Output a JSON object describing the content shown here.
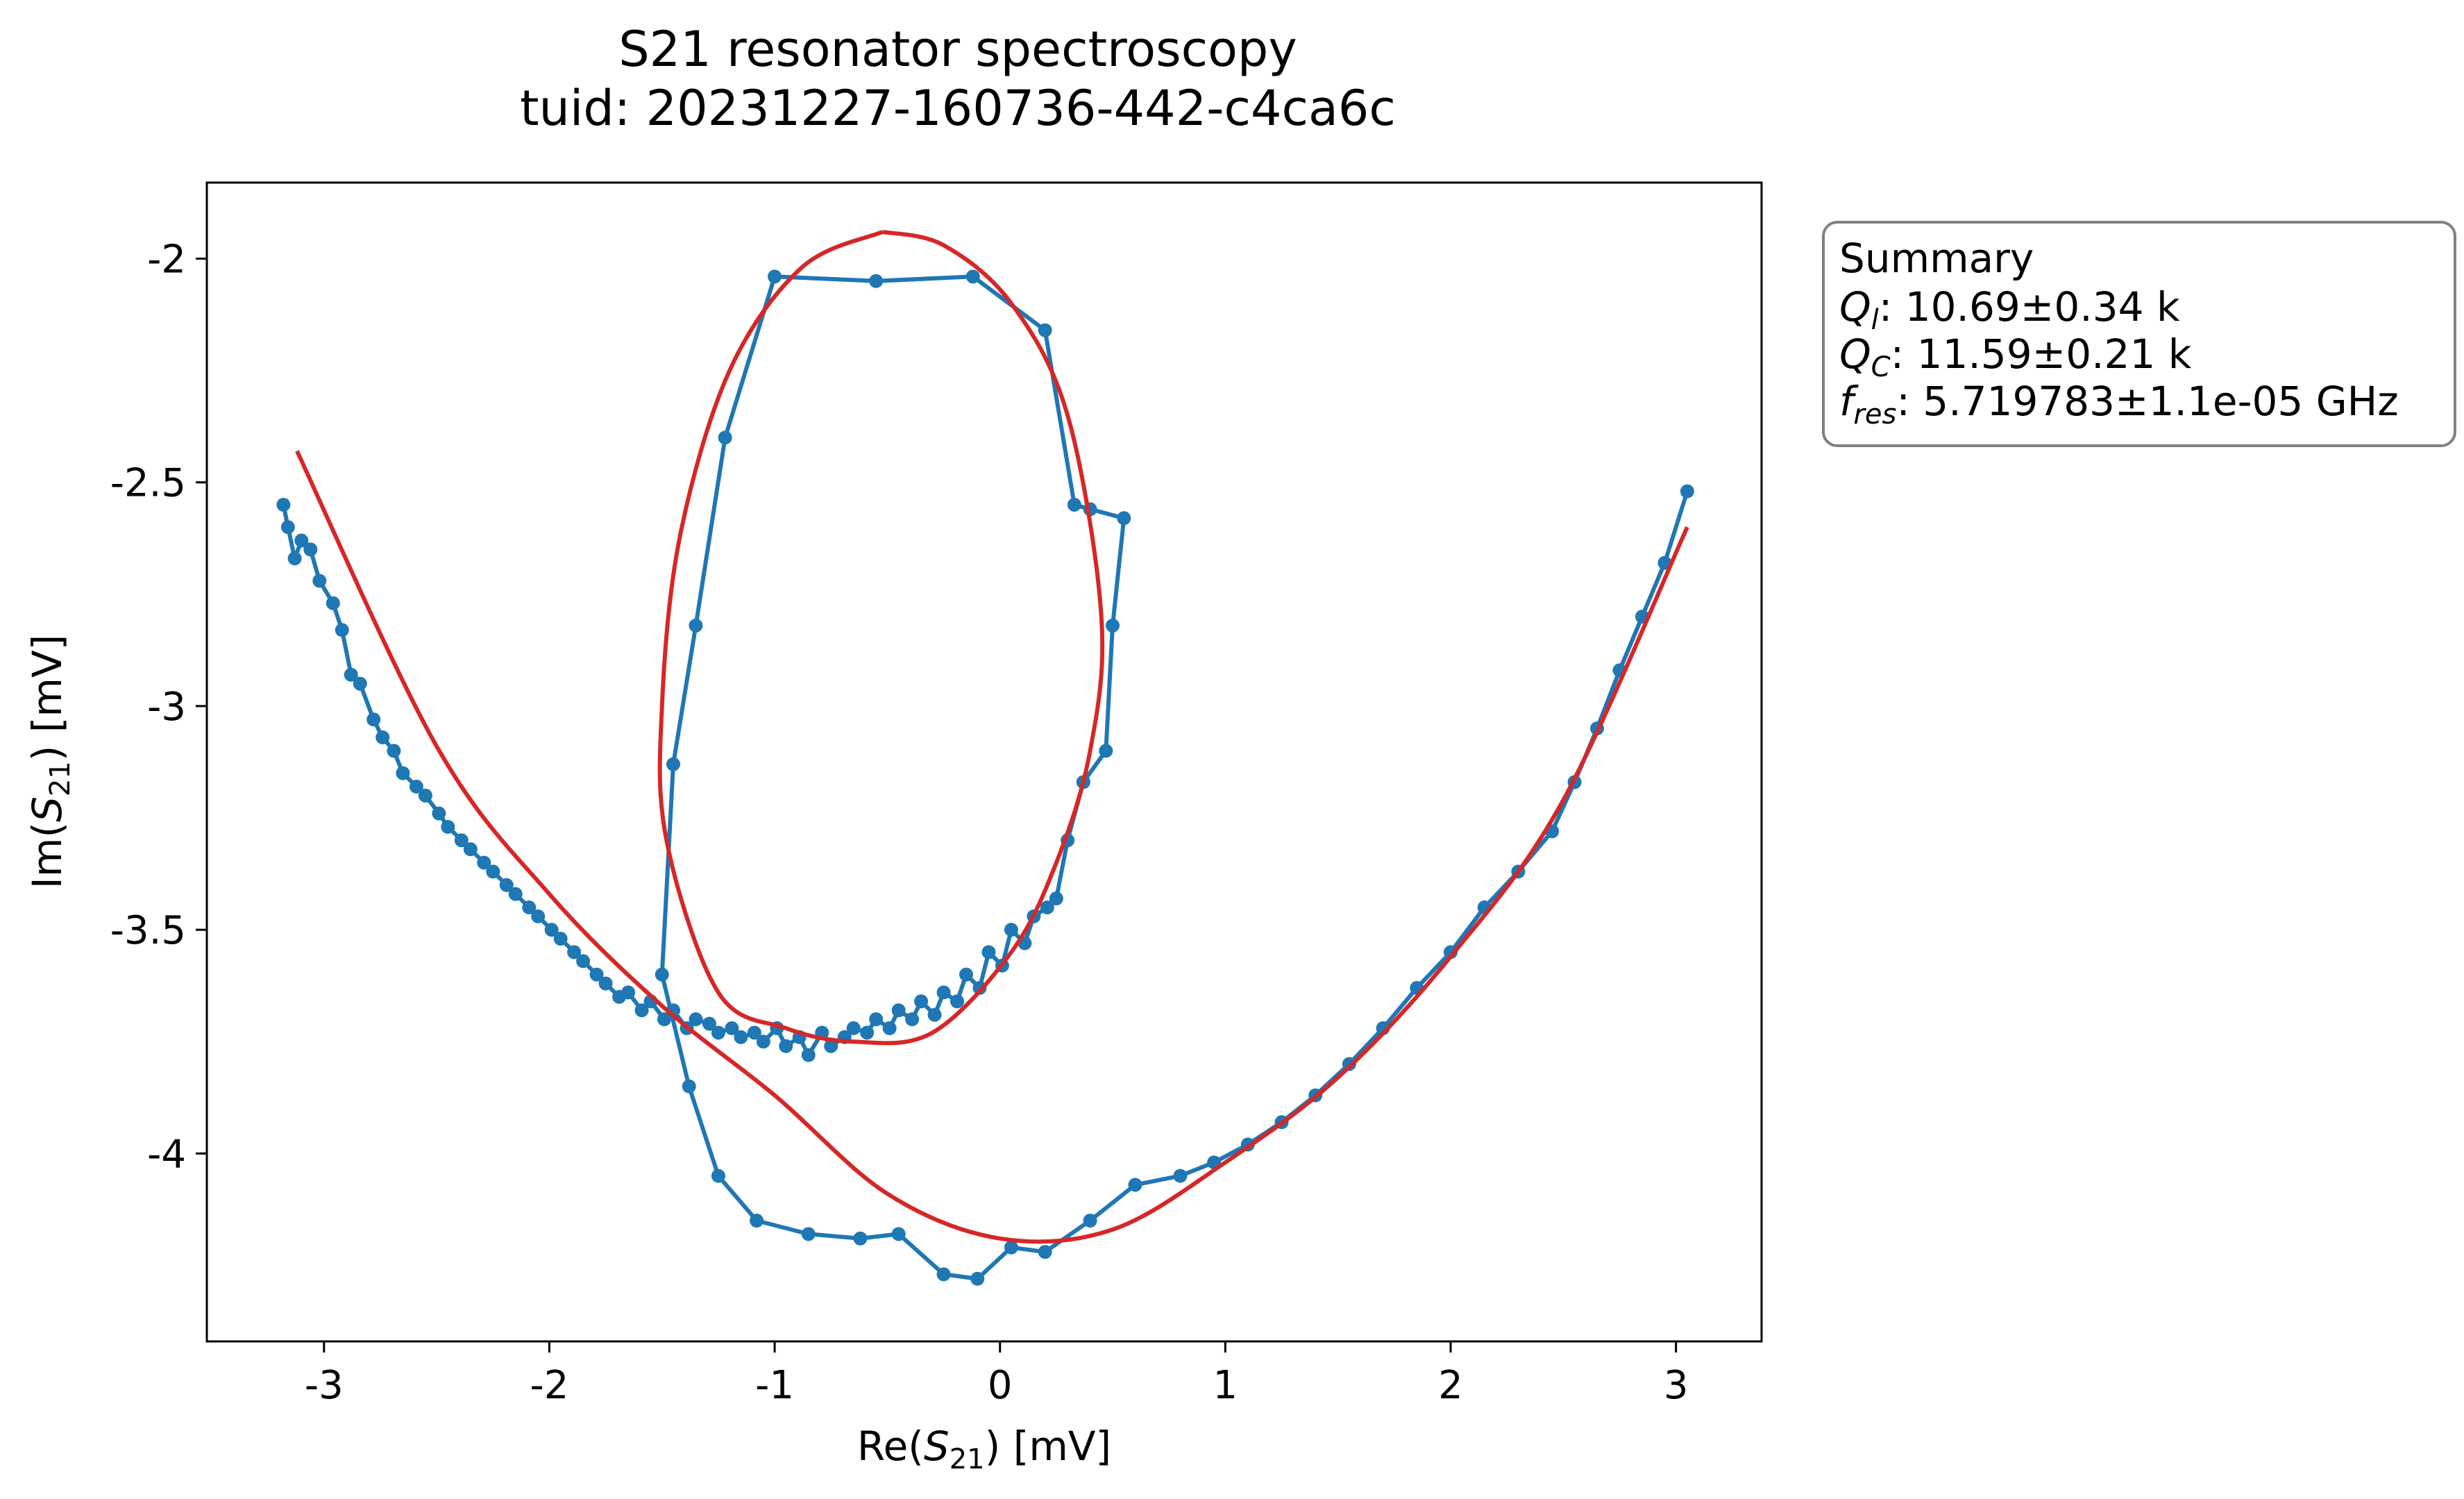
{
  "chart_data": {
    "type": "scatter",
    "title": "S21 resonator spectroscopy",
    "subtitle": "tuid: 20231227-160736-442-c4ca6c",
    "xlabel": "Re(S21) [mV]",
    "ylabel": "Im(S21) [mV]",
    "xlim": [
      -3.52,
      3.38
    ],
    "ylim": [
      -4.42,
      -1.83
    ],
    "xticks": [
      -3,
      -2,
      -1,
      0,
      1,
      2,
      3
    ],
    "xtick_labels": [
      "-3",
      "-2",
      "-1",
      "0",
      "1",
      "2",
      "3"
    ],
    "yticks": [
      -4,
      -3.5,
      -3,
      -2.5,
      -2
    ],
    "ytick_labels": [
      "-4",
      "-3.5",
      "-3",
      "-2.5",
      "-2"
    ],
    "grid": false,
    "colors": {
      "data": "#1f77b4",
      "fit": "#d62728"
    },
    "summary": {
      "heading": "Summary",
      "lines": [
        {
          "sym": "Q",
          "sub": "l",
          "text": ": 10.69±0.34 k"
        },
        {
          "sym": "Q",
          "sub": "C",
          "text": ": 11.59±0.21 k"
        },
        {
          "sym": "f",
          "sub": "res",
          "text": ": 5.719783±1.1e-05 GHz"
        }
      ]
    },
    "series": [
      {
        "style": "line+markers",
        "x": [
          -3.18,
          -3.16,
          -3.13,
          -3.1,
          -3.06,
          -3.02,
          -2.96,
          -2.92,
          -2.88,
          -2.84,
          -2.78,
          -2.74,
          -2.69,
          -2.65,
          -2.59,
          -2.55,
          -2.49,
          -2.45,
          -2.39,
          -2.35,
          -2.29,
          -2.25,
          -2.19,
          -2.15,
          -2.09,
          -2.05,
          -1.99,
          -1.95,
          -1.89,
          -1.85,
          -1.79,
          -1.75,
          -1.69,
          -1.65,
          -1.59,
          -1.55,
          -1.49,
          -1.45,
          -1.39,
          -1.35,
          -1.29,
          -1.25,
          -1.19,
          -1.15,
          -1.09,
          -1.05,
          -0.99,
          -0.95,
          -0.89,
          -0.85,
          -0.79,
          -0.75,
          -0.69,
          -0.65,
          -0.59,
          -0.55,
          -0.49,
          -0.45,
          -0.39,
          -0.35,
          -0.29,
          -0.25,
          -0.19,
          -0.15,
          -0.09,
          -0.05,
          0.01,
          0.05,
          0.11,
          0.15,
          0.21,
          0.25,
          0.3,
          0.37,
          0.47,
          0.5,
          0.55,
          0.4,
          0.33,
          0.2,
          -0.12,
          -0.55,
          -1.0,
          -1.22,
          -1.35,
          -1.45,
          -1.5,
          -1.38,
          -1.25,
          -1.08,
          -0.85,
          -0.62,
          -0.45,
          -0.25,
          -0.1,
          0.05,
          0.2,
          0.4,
          0.6,
          0.8,
          0.95,
          1.1,
          1.25,
          1.4,
          1.55,
          1.7,
          1.85,
          2.0,
          2.15,
          2.3,
          2.45,
          2.55,
          2.65,
          2.75,
          2.85,
          2.95,
          3.05
        ],
        "y": [
          -2.55,
          -2.6,
          -2.67,
          -2.63,
          -2.65,
          -2.72,
          -2.77,
          -2.83,
          -2.93,
          -2.95,
          -3.03,
          -3.07,
          -3.1,
          -3.15,
          -3.18,
          -3.2,
          -3.24,
          -3.27,
          -3.3,
          -3.32,
          -3.35,
          -3.37,
          -3.4,
          -3.42,
          -3.45,
          -3.47,
          -3.5,
          -3.52,
          -3.55,
          -3.57,
          -3.6,
          -3.62,
          -3.65,
          -3.64,
          -3.68,
          -3.66,
          -3.7,
          -3.68,
          -3.72,
          -3.7,
          -3.71,
          -3.73,
          -3.72,
          -3.74,
          -3.73,
          -3.75,
          -3.72,
          -3.76,
          -3.74,
          -3.78,
          -3.73,
          -3.76,
          -3.74,
          -3.72,
          -3.73,
          -3.7,
          -3.72,
          -3.68,
          -3.7,
          -3.66,
          -3.69,
          -3.64,
          -3.66,
          -3.6,
          -3.63,
          -3.55,
          -3.58,
          -3.5,
          -3.53,
          -3.47,
          -3.45,
          -3.43,
          -3.3,
          -3.17,
          -3.1,
          -2.82,
          -2.58,
          -2.56,
          -2.55,
          -2.16,
          -2.04,
          -2.05,
          -2.04,
          -2.4,
          -2.82,
          -3.13,
          -3.6,
          -3.85,
          -4.05,
          -4.15,
          -4.18,
          -4.19,
          -4.18,
          -4.27,
          -4.28,
          -4.21,
          -4.22,
          -4.15,
          -4.07,
          -4.05,
          -4.02,
          -3.98,
          -3.93,
          -3.87,
          -3.8,
          -3.72,
          -3.63,
          -3.55,
          -3.45,
          -3.37,
          -3.28,
          -3.17,
          -3.05,
          -2.92,
          -2.8,
          -2.68,
          -2.52
        ]
      },
      {
        "style": "line",
        "x": [
          -3.12,
          -2.5,
          -2.0,
          -1.5,
          -1.0,
          -0.5,
          0.0,
          0.5,
          1.0,
          1.5,
          2.0,
          2.5,
          3.05
        ],
        "y": [
          -2.43,
          -3.09,
          -3.42,
          -3.67,
          -3.87,
          -4.09,
          -4.19,
          -4.17,
          -4.02,
          -3.83,
          -3.56,
          -3.21,
          -2.6
        ]
      },
      {
        "style": "line",
        "x": [
          -0.52,
          -0.25,
          0.05,
          0.3,
          0.45,
          0.4,
          0.25,
          0.05,
          -0.3,
          -0.65,
          -0.95,
          -1.25,
          -1.48,
          -1.5,
          -1.42,
          -1.2,
          -0.88,
          -0.52
        ],
        "y": [
          -1.94,
          -1.97,
          -2.1,
          -2.35,
          -2.8,
          -3.1,
          -3.35,
          -3.55,
          -3.73,
          -3.75,
          -3.72,
          -3.64,
          -3.3,
          -3.0,
          -2.62,
          -2.25,
          -2.02,
          -1.94
        ]
      }
    ]
  }
}
